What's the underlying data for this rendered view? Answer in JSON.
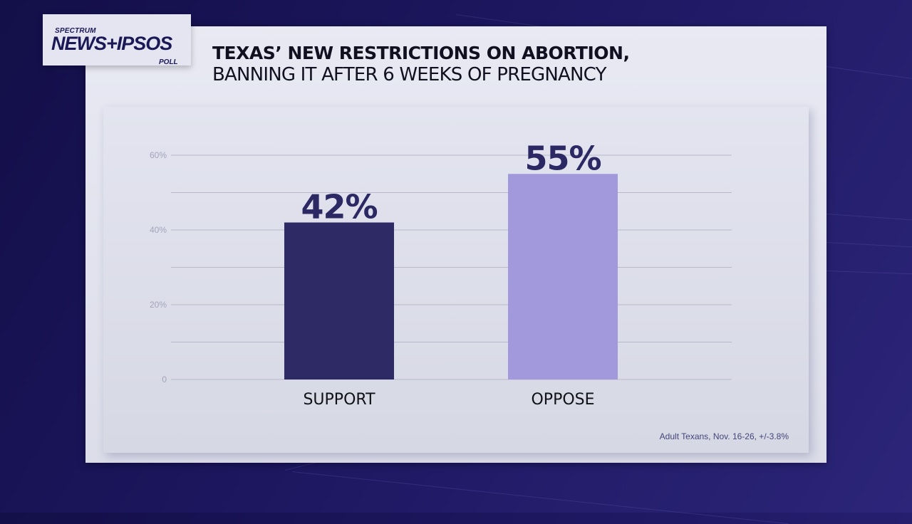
{
  "logo": {
    "top": "SPECTRUM",
    "main": "NEWS+IPSOS",
    "bottom": "POLL"
  },
  "title": {
    "line1": "TEXAS’ NEW RESTRICTIONS ON ABORTION,",
    "line2": "BANNING IT AFTER 6 WEEKS OF PREGNANCY"
  },
  "footnote": "Adult Texans, Nov. 16-26, +/-3.8%",
  "colors": {
    "support": "#2d2a66",
    "oppose": "#a298dc",
    "gridline": "#b7b8cc",
    "background": "#1d1760"
  },
  "chart_data": {
    "type": "bar",
    "title": "TEXAS’ NEW RESTRICTIONS ON ABORTION, BANNING IT AFTER 6 WEEKS OF PREGNANCY",
    "categories": [
      "SUPPORT",
      "OPPOSE"
    ],
    "values": [
      42,
      55
    ],
    "value_labels": [
      "42%",
      "55%"
    ],
    "xlabel": "",
    "ylabel": "",
    "ylim": [
      0,
      60
    ],
    "yticks": [
      0,
      20,
      40,
      60
    ],
    "ytick_labels": [
      "0",
      "20%",
      "40%",
      "60%"
    ],
    "gridlines": [
      0,
      10,
      20,
      30,
      40,
      50,
      60
    ],
    "grid": true,
    "legend": "none"
  }
}
